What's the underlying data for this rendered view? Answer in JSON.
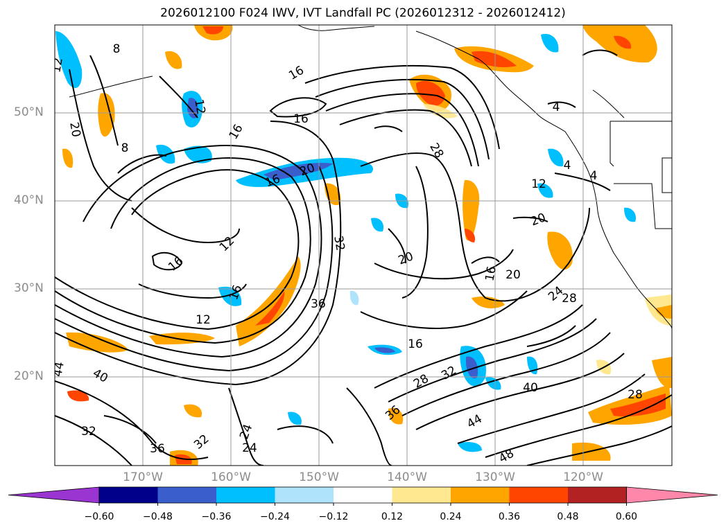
{
  "title": "2026012100 F024 IWV, IVT Landfall PC (2026012312 - 2026012412)",
  "axes": {
    "lat_labels": [
      "50°N",
      "40°N",
      "30°N",
      "20°N"
    ],
    "lon_labels": [
      "170°W",
      "160°W",
      "150°W",
      "140°W",
      "130°W",
      "120°W"
    ]
  },
  "colorbar": {
    "tick_labels": [
      "−0.60",
      "−0.48",
      "−0.36",
      "−0.24",
      "−0.12",
      "0.12",
      "0.24",
      "0.36",
      "0.48",
      "0.60"
    ],
    "colors": [
      "#9a35d2",
      "#00008b",
      "#3a5fcd",
      "#00bfff",
      "#afe2fb",
      "#ffffff",
      "#ffe88f",
      "#ffa500",
      "#ff4500",
      "#b22222",
      "#ff88aa"
    ]
  },
  "contour_labels": [
    "12",
    "8",
    "20",
    "8",
    "12",
    "16",
    "16",
    "16",
    "20",
    "12",
    "16",
    "16",
    "12",
    "28",
    "4",
    "4",
    "4",
    "12",
    "20",
    "16",
    "20",
    "16",
    "20",
    "36",
    "32",
    "16",
    "24",
    "28",
    "32",
    "28",
    "44",
    "40",
    "44",
    "40",
    "48",
    "36",
    "32",
    "24",
    "24",
    "36",
    "32",
    "28"
  ],
  "chart_data": {
    "type": "heatmap",
    "title": "2026012100 F024 IWV, IVT Landfall PC (2026012312 - 2026012412)",
    "map_extent": {
      "lon_min": -180,
      "lon_max": -110,
      "lat_min": 10,
      "lat_max": 60
    },
    "graticule_deg": 10,
    "contour_field": "IWV",
    "contour_levels": [
      4,
      8,
      12,
      16,
      20,
      24,
      28,
      32,
      36,
      40,
      44,
      48
    ],
    "fill_field": "IVT Landfall PC",
    "fill_levels": [
      -0.6,
      -0.48,
      -0.36,
      -0.24,
      -0.12,
      0.12,
      0.24,
      0.36,
      0.48,
      0.6
    ],
    "colorbar_extend": "both"
  }
}
